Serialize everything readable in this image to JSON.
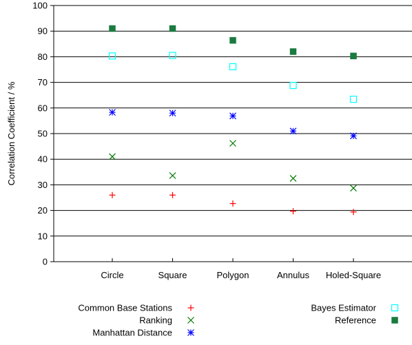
{
  "chart_data": {
    "type": "scatter",
    "title": "",
    "xlabel": "",
    "ylabel": "Correlation Coefficient / %",
    "ylim": [
      0,
      100
    ],
    "yticks": [
      0,
      10,
      20,
      30,
      40,
      50,
      60,
      70,
      80,
      90,
      100
    ],
    "grid": "horizontal",
    "legend_position": "bottom",
    "categories": [
      "Circle",
      "Square",
      "Polygon",
      "Annulus",
      "Holed-Square"
    ],
    "series": [
      {
        "name": "Common Base Stations",
        "marker": "plus",
        "color": "#ff0000",
        "values": [
          26.0,
          26.0,
          22.7,
          19.7,
          19.4
        ]
      },
      {
        "name": "Ranking",
        "marker": "cross",
        "color": "#007a00",
        "values": [
          41.0,
          33.6,
          46.2,
          32.5,
          28.7
        ]
      },
      {
        "name": "Manhattan Distance",
        "marker": "asterisk",
        "color": "#0000ff",
        "values": [
          58.3,
          58.0,
          56.9,
          51.0,
          49.1
        ]
      },
      {
        "name": "Bayes Estimator",
        "marker": "open-square",
        "color": "#00ffff",
        "values": [
          80.3,
          80.5,
          76.1,
          68.8,
          63.4
        ]
      },
      {
        "name": "Reference",
        "marker": "filled-square",
        "color": "#1a7a40",
        "values": [
          91.0,
          91.0,
          86.4,
          82.0,
          80.3
        ]
      }
    ]
  }
}
